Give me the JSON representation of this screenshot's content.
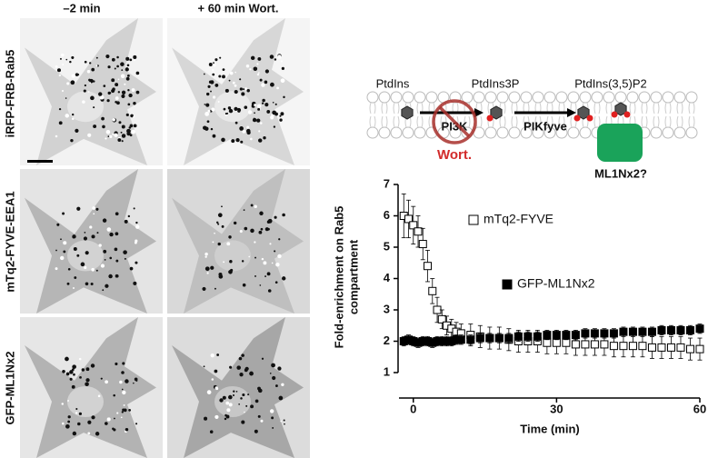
{
  "panels": {
    "columns": [
      "–2 min",
      "+ 60 min Wort."
    ],
    "rows": [
      "iRFP-FRB-Rab5",
      "mTq2-FYVE-EEA1",
      "GFP-ML1Nx2"
    ]
  },
  "schematic": {
    "lipids": [
      "PtdIns",
      "PtdIns3P",
      "PtdIns(3,5)P2"
    ],
    "enzymes": [
      "PI3K",
      "PIKfyve"
    ],
    "inhibitor": "Wort.",
    "probe": "ML1Nx2?"
  },
  "chart_data": {
    "type": "scatter",
    "xlabel": "Time (min)",
    "ylabel": [
      "Fold-enrichment on Rab5",
      "compartment"
    ],
    "xlim": [
      -3,
      60
    ],
    "ylim": [
      1,
      7
    ],
    "xticks": [
      0,
      30,
      60
    ],
    "yticks": [
      1,
      2,
      3,
      4,
      5,
      6,
      7
    ],
    "x": [
      -2,
      -1,
      0,
      1,
      2,
      3,
      4,
      5,
      6,
      7,
      8,
      9,
      10,
      12,
      14,
      16,
      18,
      20,
      22,
      24,
      26,
      28,
      30,
      32,
      34,
      36,
      38,
      40,
      42,
      44,
      46,
      48,
      50,
      52,
      54,
      56,
      58,
      60
    ],
    "series": [
      {
        "name": "mTq2-FYVE",
        "color": "#000000",
        "marker": "open-square",
        "values": [
          6.0,
          5.9,
          5.7,
          5.5,
          5.1,
          4.4,
          3.6,
          3.0,
          2.7,
          2.5,
          2.4,
          2.3,
          2.25,
          2.2,
          2.15,
          2.1,
          2.1,
          2.05,
          2.0,
          2.0,
          2.0,
          1.95,
          1.95,
          1.95,
          1.9,
          1.9,
          1.9,
          1.9,
          1.85,
          1.85,
          1.85,
          1.85,
          1.8,
          1.8,
          1.8,
          1.8,
          1.75,
          1.75
        ],
        "errors": [
          0.7,
          0.6,
          0.6,
          0.5,
          0.5,
          0.5,
          0.4,
          0.4,
          0.3,
          0.3,
          0.3,
          0.3,
          0.3,
          0.35,
          0.35,
          0.35,
          0.35,
          0.35,
          0.35,
          0.35,
          0.35,
          0.35,
          0.35,
          0.35,
          0.35,
          0.35,
          0.35,
          0.35,
          0.35,
          0.35,
          0.35,
          0.35,
          0.35,
          0.35,
          0.35,
          0.35,
          0.35,
          0.35
        ]
      },
      {
        "name": "GFP-ML1Nx2",
        "color": "#000000",
        "marker": "filled-square",
        "values": [
          2.0,
          2.05,
          2.0,
          1.95,
          2.0,
          2.0,
          1.95,
          2.0,
          2.0,
          2.0,
          2.0,
          2.05,
          2.05,
          2.05,
          2.1,
          2.1,
          2.1,
          2.1,
          2.15,
          2.15,
          2.15,
          2.2,
          2.2,
          2.2,
          2.2,
          2.25,
          2.25,
          2.25,
          2.25,
          2.3,
          2.3,
          2.3,
          2.3,
          2.35,
          2.35,
          2.35,
          2.35,
          2.4
        ],
        "errors": [
          0.15,
          0.15,
          0.15,
          0.15,
          0.15,
          0.15,
          0.15,
          0.15,
          0.15,
          0.15,
          0.15,
          0.15,
          0.15,
          0.15,
          0.15,
          0.15,
          0.15,
          0.15,
          0.15,
          0.15,
          0.15,
          0.15,
          0.15,
          0.15,
          0.15,
          0.15,
          0.15,
          0.15,
          0.15,
          0.15,
          0.15,
          0.15,
          0.15,
          0.15,
          0.15,
          0.15,
          0.15,
          0.15
        ]
      }
    ]
  }
}
